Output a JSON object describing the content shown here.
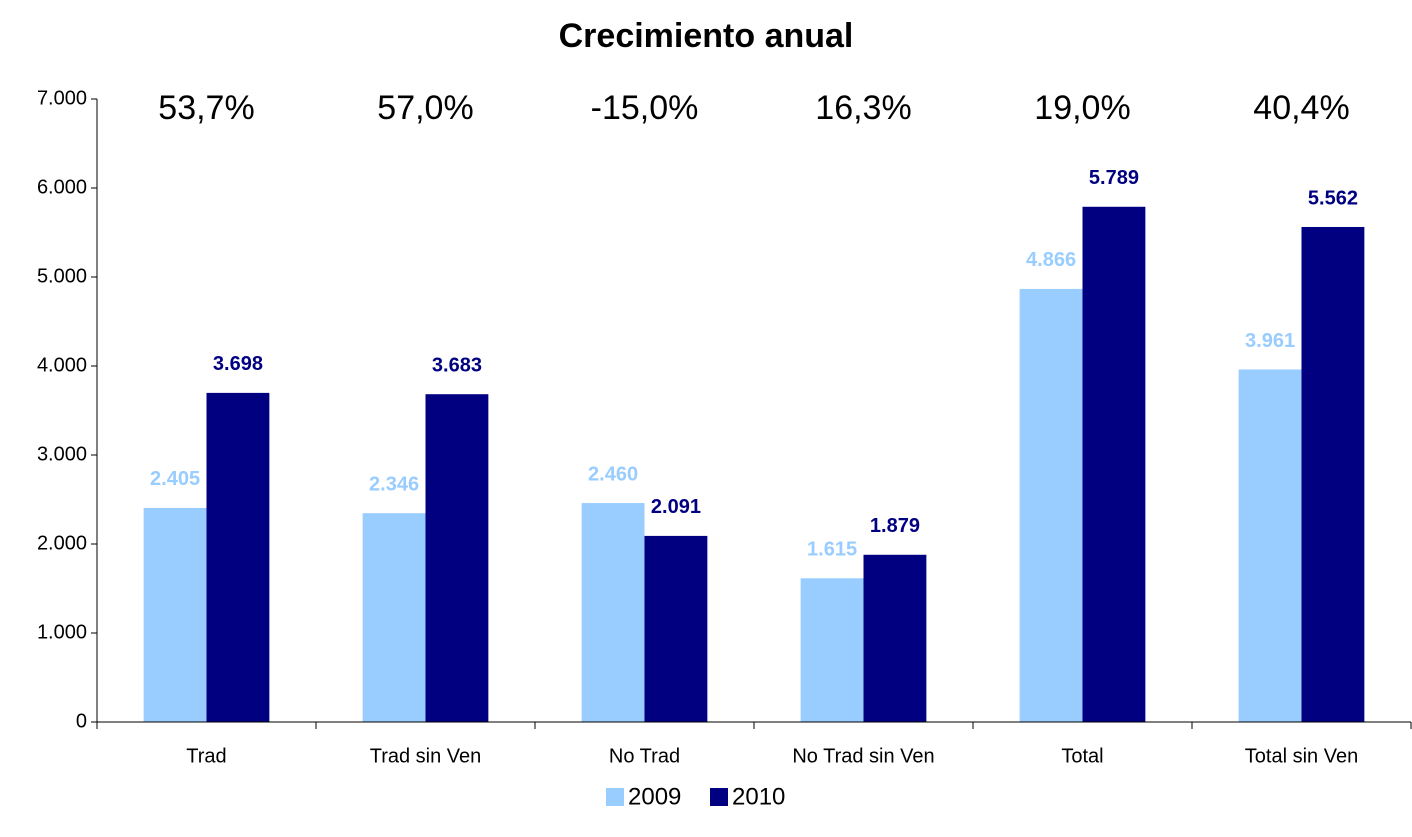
{
  "chart_data": {
    "type": "bar",
    "title": "Crecimiento anual",
    "categories": [
      "Trad",
      "Trad sin Ven",
      "No Trad",
      "No Trad sin Ven",
      "Total",
      "Total sin Ven"
    ],
    "series": [
      {
        "name": "2009",
        "color": "#99ccff",
        "values": [
          2405,
          2346,
          2460,
          1615,
          4866,
          3961
        ],
        "value_labels": [
          "2.405",
          "2.346",
          "2.460",
          "1.615",
          "4.866",
          "3.961"
        ]
      },
      {
        "name": "2010",
        "color": "#000080",
        "values": [
          3698,
          3683,
          2091,
          1879,
          5789,
          5562
        ],
        "value_labels": [
          "3.698",
          "3.683",
          "2.091",
          "1.879",
          "5.789",
          "5.562"
        ]
      }
    ],
    "annotations": [
      "53,7%",
      "57,0%",
      "-15,0%",
      "16,3%",
      "19,0%",
      "40,4%"
    ],
    "ylim": [
      0,
      7000
    ],
    "yticks": [
      0,
      {
        "value": 1000,
        "label": "1.000"
      },
      {
        "value": 2000,
        "label": "2.000"
      },
      {
        "value": 3000,
        "label": "3.000"
      },
      {
        "value": 4000,
        "label": "4.000"
      },
      {
        "value": 5000,
        "label": "5.000"
      },
      {
        "value": 6000,
        "label": "6.000"
      },
      {
        "value": 7000,
        "label": "7.000"
      }
    ],
    "legend": "bottom",
    "grid": false
  }
}
